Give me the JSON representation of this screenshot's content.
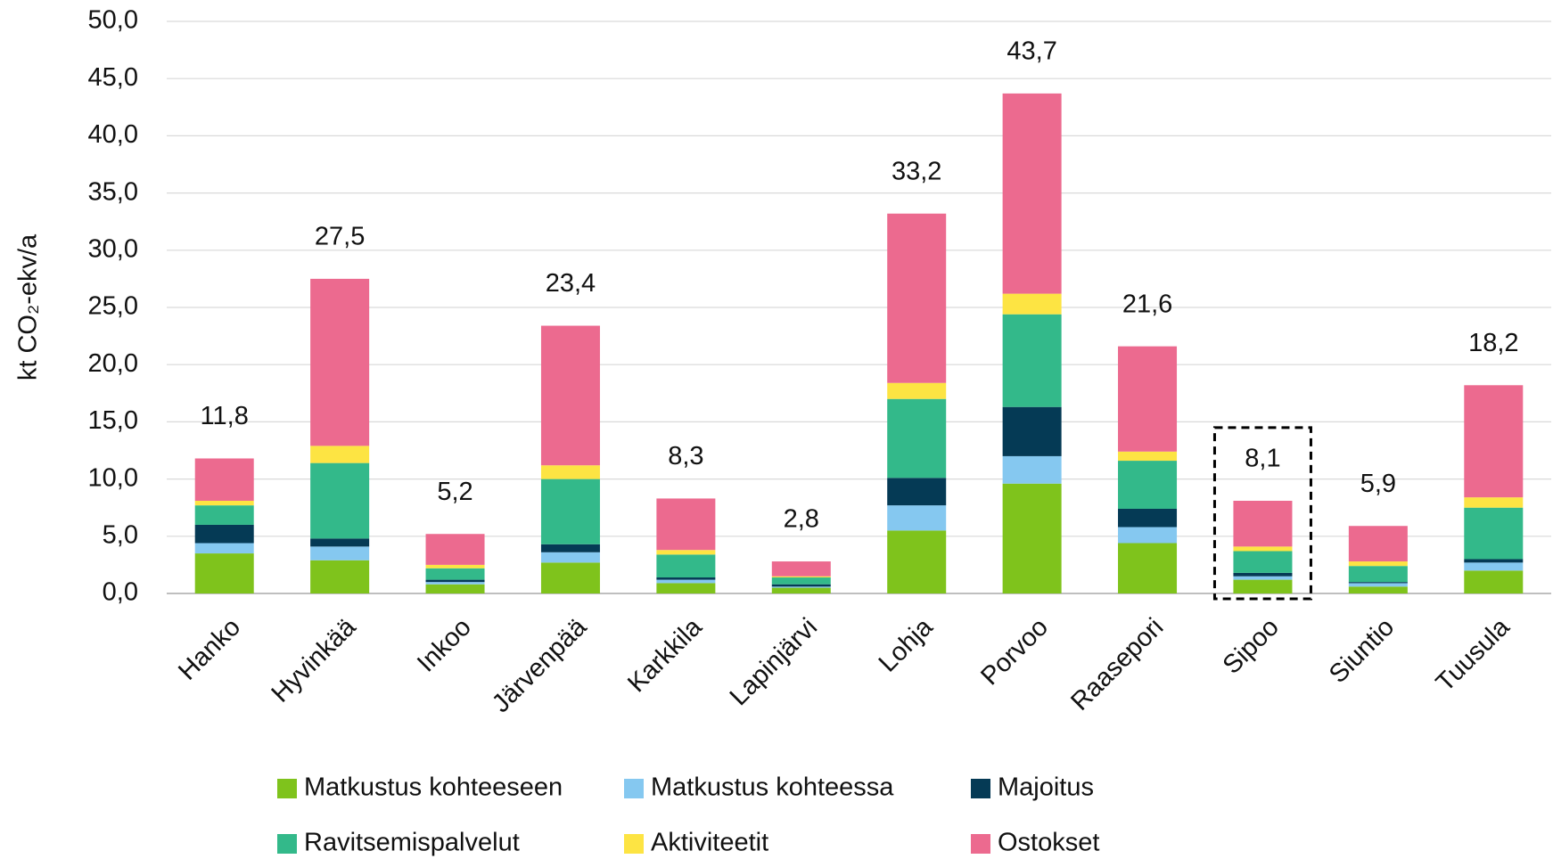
{
  "chart_data": {
    "type": "bar",
    "stacked": true,
    "y_label": "kt CO₂-ekv/a",
    "categories": [
      "Hanko",
      "Hyvinkää",
      "Inkoo",
      "Järvenpää",
      "Karkkila",
      "Lapinjärvi",
      "Lohja",
      "Porvoo",
      "Raasepori",
      "Sipoo",
      "Siuntio",
      "Tuusula"
    ],
    "series": [
      {
        "name": "Matkustus kohteeseen",
        "color": "#7fc31c",
        "values": [
          3.5,
          2.9,
          0.8,
          2.7,
          0.9,
          0.5,
          5.5,
          9.6,
          4.4,
          1.2,
          0.6,
          2.0
        ]
      },
      {
        "name": "Matkustus kohteessa",
        "color": "#85c8f0",
        "values": [
          0.9,
          1.2,
          0.2,
          0.9,
          0.3,
          0.1,
          2.2,
          2.4,
          1.4,
          0.3,
          0.3,
          0.7
        ]
      },
      {
        "name": "Majoitus",
        "color": "#053a55",
        "values": [
          1.6,
          0.7,
          0.2,
          0.7,
          0.2,
          0.2,
          2.4,
          4.3,
          1.6,
          0.3,
          0.1,
          0.3
        ]
      },
      {
        "name": "Ravitsemispalvelut",
        "color": "#33b98a",
        "values": [
          1.7,
          6.6,
          1.0,
          5.7,
          2.0,
          0.6,
          6.9,
          8.1,
          4.2,
          1.9,
          1.4,
          4.5
        ]
      },
      {
        "name": "Aktiviteetit",
        "color": "#fde443",
        "values": [
          0.4,
          1.5,
          0.3,
          1.2,
          0.4,
          0.1,
          1.4,
          1.8,
          0.8,
          0.4,
          0.4,
          0.9
        ]
      },
      {
        "name": "Ostokset",
        "color": "#ec6a8f",
        "values": [
          3.7,
          14.6,
          2.7,
          12.2,
          4.5,
          1.3,
          14.8,
          17.5,
          9.2,
          4.0,
          3.1,
          9.8
        ]
      }
    ],
    "totals": [
      11.8,
      27.5,
      5.2,
      23.4,
      8.3,
      2.8,
      33.2,
      43.7,
      21.6,
      8.1,
      5.9,
      18.2
    ],
    "total_labels": [
      "11,8",
      "27,5",
      "5,2",
      "23,4",
      "8,3",
      "2,8",
      "33,2",
      "43,7",
      "21,6",
      "8,1",
      "5,9",
      "18,2"
    ],
    "ylim": [
      0,
      50
    ],
    "yticks": [
      {
        "value": 0,
        "label": "0,0"
      },
      {
        "value": 5,
        "label": "5,0"
      },
      {
        "value": 10,
        "label": "10,0"
      },
      {
        "value": 15,
        "label": "15,0"
      },
      {
        "value": 20,
        "label": "20,0"
      },
      {
        "value": 25,
        "label": "25,0"
      },
      {
        "value": 30,
        "label": "30,0"
      },
      {
        "value": 35,
        "label": "35,0"
      },
      {
        "value": 40,
        "label": "40,0"
      },
      {
        "value": 45,
        "label": "45,0"
      },
      {
        "value": 50,
        "label": "50,0"
      }
    ],
    "grid": true,
    "legend": "bottom"
  }
}
